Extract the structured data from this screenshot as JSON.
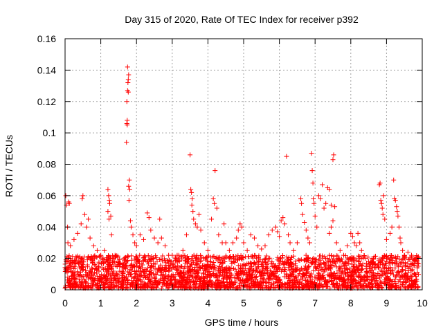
{
  "chart_data": {
    "type": "scatter",
    "title": "Day 315 of 2020, Rate Of TEC Index for receiver p392",
    "xlabel": "GPS time / hours",
    "ylabel": "ROTI / TECUs",
    "xlim": [
      0,
      10
    ],
    "ylim": [
      0,
      0.16
    ],
    "x_ticks": [
      0,
      1,
      2,
      3,
      4,
      5,
      6,
      7,
      8,
      9,
      10
    ],
    "x_tick_labels": [
      "0",
      "1",
      "2",
      "3",
      "4",
      "5",
      "6",
      "7",
      "8",
      "9",
      "10"
    ],
    "y_ticks": [
      0,
      0.02,
      0.04,
      0.06,
      0.08,
      0.1,
      0.12,
      0.14,
      0.16
    ],
    "y_tick_labels": [
      "0",
      "0.02",
      "0.04",
      "0.06",
      "0.08",
      "0.1",
      "0.12",
      "0.14",
      "0.16"
    ],
    "grid": true,
    "marker": "+",
    "color": "#ff0000",
    "series": [
      {
        "name": "ROTI",
        "points": [
          [
            0.02,
            0.06
          ],
          [
            0.04,
            0.054
          ],
          [
            0.07,
            0.04
          ],
          [
            0.1,
            0.056
          ],
          [
            0.12,
            0.055
          ],
          [
            0.08,
            0.03
          ],
          [
            0.15,
            0.028
          ],
          [
            0.25,
            0.032
          ],
          [
            0.35,
            0.036
          ],
          [
            0.45,
            0.042
          ],
          [
            0.48,
            0.058
          ],
          [
            0.5,
            0.06
          ],
          [
            0.55,
            0.048
          ],
          [
            0.6,
            0.04
          ],
          [
            0.65,
            0.045
          ],
          [
            0.7,
            0.033
          ],
          [
            0.8,
            0.028
          ],
          [
            0.9,
            0.025
          ],
          [
            1.0,
            0.022
          ],
          [
            1.1,
            0.025
          ],
          [
            1.2,
            0.064
          ],
          [
            1.22,
            0.06
          ],
          [
            1.24,
            0.057
          ],
          [
            1.25,
            0.055
          ],
          [
            1.2,
            0.05
          ],
          [
            1.28,
            0.047
          ],
          [
            1.23,
            0.045
          ],
          [
            1.3,
            0.035
          ],
          [
            1.4,
            0.022
          ],
          [
            1.5,
            0.016
          ],
          [
            1.6,
            0.015
          ],
          [
            1.75,
            0.142
          ],
          [
            1.78,
            0.137
          ],
          [
            1.77,
            0.134
          ],
          [
            1.76,
            0.132
          ],
          [
            1.75,
            0.127
          ],
          [
            1.77,
            0.126
          ],
          [
            1.73,
            0.12
          ],
          [
            1.74,
            0.108
          ],
          [
            1.73,
            0.106
          ],
          [
            1.74,
            0.105
          ],
          [
            1.72,
            0.094
          ],
          [
            1.8,
            0.07
          ],
          [
            1.78,
            0.066
          ],
          [
            1.81,
            0.064
          ],
          [
            1.79,
            0.057
          ],
          [
            1.83,
            0.044
          ],
          [
            1.85,
            0.04
          ],
          [
            1.9,
            0.035
          ],
          [
            1.95,
            0.03
          ],
          [
            2.0,
            0.028
          ],
          [
            2.1,
            0.035
          ],
          [
            2.2,
            0.032
          ],
          [
            2.3,
            0.049
          ],
          [
            2.35,
            0.046
          ],
          [
            2.4,
            0.038
          ],
          [
            2.5,
            0.033
          ],
          [
            2.6,
            0.03
          ],
          [
            2.65,
            0.045
          ],
          [
            2.7,
            0.033
          ],
          [
            2.8,
            0.028
          ],
          [
            2.9,
            0.022
          ],
          [
            3.0,
            0.022
          ],
          [
            3.1,
            0.02
          ],
          [
            3.2,
            0.018
          ],
          [
            3.3,
            0.025
          ],
          [
            3.4,
            0.035
          ],
          [
            3.5,
            0.086
          ],
          [
            3.52,
            0.064
          ],
          [
            3.54,
            0.062
          ],
          [
            3.56,
            0.058
          ],
          [
            3.55,
            0.054
          ],
          [
            3.58,
            0.05
          ],
          [
            3.6,
            0.045
          ],
          [
            3.65,
            0.042
          ],
          [
            3.7,
            0.04
          ],
          [
            3.75,
            0.048
          ],
          [
            3.8,
            0.038
          ],
          [
            3.9,
            0.03
          ],
          [
            4.0,
            0.025
          ],
          [
            4.1,
            0.045
          ],
          [
            4.15,
            0.058
          ],
          [
            4.18,
            0.055
          ],
          [
            4.2,
            0.076
          ],
          [
            4.25,
            0.052
          ],
          [
            4.3,
            0.035
          ],
          [
            4.4,
            0.03
          ],
          [
            4.45,
            0.042
          ],
          [
            4.5,
            0.03
          ],
          [
            4.6,
            0.025
          ],
          [
            4.7,
            0.03
          ],
          [
            4.8,
            0.033
          ],
          [
            4.85,
            0.038
          ],
          [
            4.9,
            0.042
          ],
          [
            4.95,
            0.04
          ],
          [
            5.0,
            0.03
          ],
          [
            5.1,
            0.025
          ],
          [
            5.2,
            0.035
          ],
          [
            5.3,
            0.033
          ],
          [
            5.4,
            0.028
          ],
          [
            5.5,
            0.026
          ],
          [
            5.6,
            0.028
          ],
          [
            5.7,
            0.035
          ],
          [
            5.8,
            0.038
          ],
          [
            5.9,
            0.04
          ],
          [
            5.95,
            0.037
          ],
          [
            6.0,
            0.034
          ],
          [
            6.05,
            0.044
          ],
          [
            6.1,
            0.046
          ],
          [
            6.15,
            0.042
          ],
          [
            6.2,
            0.085
          ],
          [
            6.25,
            0.035
          ],
          [
            6.3,
            0.03
          ],
          [
            6.4,
            0.025
          ],
          [
            6.5,
            0.03
          ],
          [
            6.6,
            0.058
          ],
          [
            6.62,
            0.055
          ],
          [
            6.65,
            0.048
          ],
          [
            6.7,
            0.043
          ],
          [
            6.75,
            0.038
          ],
          [
            6.8,
            0.033
          ],
          [
            6.85,
            0.03
          ],
          [
            6.9,
            0.087
          ],
          [
            6.92,
            0.076
          ],
          [
            6.94,
            0.068
          ],
          [
            6.95,
            0.058
          ],
          [
            6.97,
            0.055
          ],
          [
            7.0,
            0.047
          ],
          [
            7.05,
            0.04
          ],
          [
            7.1,
            0.06
          ],
          [
            7.15,
            0.058
          ],
          [
            7.2,
            0.067
          ],
          [
            7.25,
            0.052
          ],
          [
            7.3,
            0.055
          ],
          [
            7.35,
            0.065
          ],
          [
            7.4,
            0.064
          ],
          [
            7.45,
            0.054
          ],
          [
            7.5,
            0.083
          ],
          [
            7.52,
            0.086
          ],
          [
            7.55,
            0.053
          ],
          [
            7.5,
            0.044
          ],
          [
            7.45,
            0.04
          ],
          [
            7.4,
            0.036
          ],
          [
            7.6,
            0.03
          ],
          [
            7.7,
            0.025
          ],
          [
            7.8,
            0.022
          ],
          [
            7.9,
            0.028
          ],
          [
            8.0,
            0.036
          ],
          [
            8.05,
            0.034
          ],
          [
            8.1,
            0.03
          ],
          [
            8.15,
            0.028
          ],
          [
            8.2,
            0.036
          ],
          [
            8.25,
            0.03
          ],
          [
            8.3,
            0.025
          ],
          [
            8.4,
            0.02
          ],
          [
            8.5,
            0.018
          ],
          [
            8.6,
            0.015
          ],
          [
            8.7,
            0.014
          ],
          [
            8.8,
            0.067
          ],
          [
            8.82,
            0.068
          ],
          [
            8.84,
            0.057
          ],
          [
            8.86,
            0.055
          ],
          [
            8.88,
            0.052
          ],
          [
            8.9,
            0.048
          ],
          [
            8.92,
            0.06
          ],
          [
            8.95,
            0.045
          ],
          [
            9.0,
            0.032
          ],
          [
            9.1,
            0.036
          ],
          [
            9.15,
            0.04
          ],
          [
            9.2,
            0.07
          ],
          [
            9.22,
            0.058
          ],
          [
            9.25,
            0.057
          ],
          [
            9.28,
            0.053
          ],
          [
            9.3,
            0.05
          ],
          [
            9.32,
            0.047
          ],
          [
            9.35,
            0.04
          ],
          [
            9.38,
            0.033
          ],
          [
            9.4,
            0.03
          ],
          [
            9.45,
            0.025
          ],
          [
            9.5,
            0.022
          ],
          [
            9.6,
            0.024
          ],
          [
            9.7,
            0.022
          ],
          [
            9.8,
            0.02
          ],
          [
            9.85,
            0.018
          ]
        ]
      }
    ],
    "dense_band": {
      "x_range": [
        0,
        9.9
      ],
      "y_range": [
        0.001,
        0.022
      ],
      "description": "dense cloud of low ROTI observations throughout the day"
    }
  }
}
